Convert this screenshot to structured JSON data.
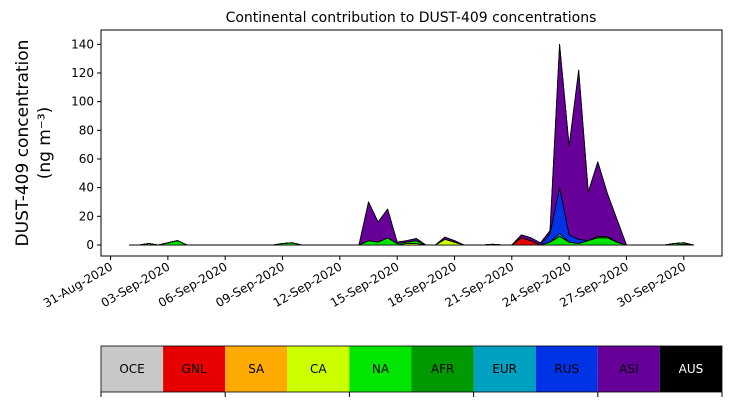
{
  "chart_data": {
    "type": "stacked_area",
    "title": "Continental contribution to DUST-409 concentrations",
    "ylabel": [
      "DUST-409 concentration",
      "(ng m⁻³)"
    ],
    "x": [
      "2020-09-01T00:00",
      "2020-09-01T12:00",
      "2020-09-02T00:00",
      "2020-09-02T12:00",
      "2020-09-03T00:00",
      "2020-09-03T12:00",
      "2020-09-04T00:00",
      "2020-09-04T12:00",
      "2020-09-05T00:00",
      "2020-09-05T12:00",
      "2020-09-06T00:00",
      "2020-09-06T12:00",
      "2020-09-07T00:00",
      "2020-09-07T12:00",
      "2020-09-08T00:00",
      "2020-09-08T12:00",
      "2020-09-09T00:00",
      "2020-09-09T12:00",
      "2020-09-10T00:00",
      "2020-09-10T12:00",
      "2020-09-11T00:00",
      "2020-09-11T12:00",
      "2020-09-12T00:00",
      "2020-09-12T12:00",
      "2020-09-13T00:00",
      "2020-09-13T12:00",
      "2020-09-14T00:00",
      "2020-09-14T12:00",
      "2020-09-15T00:00",
      "2020-09-15T12:00",
      "2020-09-16T00:00",
      "2020-09-16T12:00",
      "2020-09-17T00:00",
      "2020-09-17T12:00",
      "2020-09-18T00:00",
      "2020-09-18T12:00",
      "2020-09-19T00:00",
      "2020-09-19T12:00",
      "2020-09-20T00:00",
      "2020-09-20T12:00",
      "2020-09-21T00:00",
      "2020-09-21T12:00",
      "2020-09-22T00:00",
      "2020-09-22T12:00",
      "2020-09-23T00:00",
      "2020-09-23T12:00",
      "2020-09-24T00:00",
      "2020-09-24T12:00",
      "2020-09-25T00:00",
      "2020-09-25T12:00",
      "2020-09-26T00:00",
      "2020-09-26T12:00",
      "2020-09-27T00:00",
      "2020-09-27T12:00",
      "2020-09-28T00:00",
      "2020-09-28T12:00",
      "2020-09-29T00:00",
      "2020-09-29T12:00",
      "2020-09-30T00:00",
      "2020-09-30T12:00"
    ],
    "series": [
      {
        "name": "OCE",
        "color": "#c8c8c8",
        "values": [
          0,
          0,
          0,
          0,
          0,
          0,
          0,
          0,
          0,
          0,
          0,
          0,
          0,
          0,
          0,
          0,
          0,
          0,
          0,
          0,
          0,
          0,
          0,
          0,
          0,
          0,
          0,
          0,
          0,
          0,
          0,
          0,
          0,
          0,
          0,
          0,
          0,
          0,
          0,
          0,
          0,
          0,
          0,
          0,
          0,
          0,
          0,
          0,
          0,
          0,
          0,
          0,
          0,
          0,
          0,
          0,
          0,
          0,
          0,
          0
        ]
      },
      {
        "name": "GNL",
        "color": "#e60000",
        "values": [
          0,
          0,
          0,
          0,
          0,
          0,
          0,
          0,
          0,
          0,
          0,
          0,
          0,
          0,
          0,
          0,
          0,
          0,
          0,
          0,
          0,
          0,
          0,
          0,
          0,
          0,
          0,
          0,
          0,
          0,
          0,
          0,
          0,
          0,
          0,
          0,
          0,
          0,
          0,
          0,
          0,
          5,
          3,
          0,
          0,
          0,
          0,
          0,
          0,
          0,
          0,
          0,
          0,
          0,
          0,
          0,
          0,
          0,
          0,
          0
        ]
      },
      {
        "name": "SA",
        "color": "#ffaa00",
        "values": [
          0,
          0,
          0,
          0,
          0,
          0,
          0,
          0,
          0,
          0,
          0,
          0,
          0,
          0,
          0,
          0,
          0,
          0,
          0,
          0,
          0,
          0,
          0,
          0,
          0,
          0,
          0,
          0,
          0,
          0,
          0,
          0,
          0,
          0,
          0,
          0,
          0,
          0,
          0,
          0,
          0,
          0,
          0,
          0,
          0,
          0,
          0,
          0,
          0,
          0,
          0,
          0,
          0,
          0,
          0,
          0,
          0,
          0,
          0,
          0
        ]
      },
      {
        "name": "CA",
        "color": "#ccff00",
        "values": [
          0,
          0,
          0,
          0,
          0,
          0,
          0,
          0,
          0,
          0,
          0,
          0,
          0,
          0,
          0,
          0,
          0,
          0,
          0,
          0,
          0,
          0,
          0,
          0,
          0,
          0,
          0,
          0,
          0,
          1,
          1,
          0,
          0,
          4,
          2,
          0,
          0,
          0,
          0,
          0,
          0,
          0,
          0,
          0,
          0,
          0,
          0,
          0,
          0,
          0,
          0,
          0,
          0,
          0,
          0,
          0,
          0,
          0,
          0.5,
          0
        ]
      },
      {
        "name": "NA",
        "color": "#00e600",
        "values": [
          0,
          0,
          1,
          0,
          1.5,
          3,
          0,
          0,
          0,
          0,
          0,
          0,
          0,
          0,
          0,
          0,
          1,
          1.5,
          0,
          0,
          0,
          0,
          0,
          0,
          0,
          3,
          2,
          5,
          1,
          1,
          2,
          0,
          0,
          0,
          0,
          0,
          0,
          0,
          0.5,
          0,
          0,
          0,
          0,
          0,
          2,
          6,
          2,
          1,
          3,
          5,
          5,
          2,
          0,
          0,
          0,
          0,
          0,
          1,
          1,
          0
        ]
      },
      {
        "name": "AFR",
        "color": "#009900",
        "values": [
          0,
          0,
          0,
          0,
          0,
          0,
          0,
          0,
          0,
          0,
          0,
          0,
          0,
          0,
          0,
          0,
          0,
          0,
          0,
          0,
          0,
          0,
          0,
          0,
          0,
          0,
          0,
          0,
          0,
          0,
          0,
          0,
          0,
          0,
          0,
          0,
          0,
          0,
          0,
          0,
          0,
          0,
          0,
          0,
          0,
          0,
          0,
          0,
          0,
          1,
          1,
          0,
          0,
          0,
          0,
          0,
          0,
          0,
          0,
          0
        ]
      },
      {
        "name": "EUR",
        "color": "#00a0c0",
        "values": [
          0,
          0,
          0,
          0,
          0,
          0,
          0,
          0,
          0,
          0,
          0,
          0,
          0,
          0,
          0,
          0,
          0,
          0,
          0,
          0,
          0,
          0,
          0,
          0,
          0,
          0,
          0,
          0,
          0,
          0,
          0,
          0,
          0,
          0,
          0,
          0,
          0,
          0,
          0,
          0,
          0,
          0,
          0,
          0,
          0,
          2,
          0,
          0,
          0,
          0,
          0,
          0,
          0,
          0,
          0,
          0,
          0,
          0,
          0,
          0
        ]
      },
      {
        "name": "RUS",
        "color": "#0032e6",
        "values": [
          0,
          0,
          0,
          0,
          0,
          0,
          0,
          0,
          0,
          0,
          0,
          0,
          0,
          0,
          0,
          0,
          0,
          0,
          0,
          0,
          0,
          0,
          0,
          0,
          0,
          0,
          0,
          0,
          0,
          0,
          0,
          0,
          0,
          0,
          0,
          0,
          0,
          0,
          0,
          0,
          0,
          0,
          0,
          0,
          6,
          32,
          5,
          3,
          0,
          0,
          0,
          0,
          0,
          0,
          0,
          0,
          0,
          0,
          0,
          0
        ]
      },
      {
        "name": "ASI",
        "color": "#660099",
        "values": [
          0,
          0,
          0,
          0,
          0,
          0,
          0,
          0,
          0,
          0,
          0,
          0,
          0,
          0,
          0,
          0,
          0,
          0,
          0,
          0,
          0,
          0,
          0,
          0,
          0,
          27,
          14,
          20,
          1,
          1,
          1.5,
          0,
          0,
          1.5,
          1,
          0,
          0,
          0,
          0,
          0,
          0,
          2,
          2,
          1.5,
          2,
          100,
          62,
          118,
          34,
          52,
          30,
          16,
          0,
          0,
          0,
          0,
          0,
          0,
          0,
          0
        ]
      },
      {
        "name": "AUS",
        "color": "#000000",
        "values": [
          0,
          0,
          0,
          0,
          0,
          0,
          0,
          0,
          0,
          0,
          0,
          0,
          0,
          0,
          0,
          0,
          0,
          0,
          0,
          0,
          0,
          0,
          0,
          0,
          0,
          0,
          0,
          0,
          0,
          0,
          0,
          0,
          0,
          0,
          0,
          0,
          0,
          0,
          0,
          0,
          0,
          0,
          0,
          0,
          0,
          0,
          0,
          0,
          0,
          0,
          0,
          0,
          0,
          0,
          0,
          0,
          0,
          0,
          0,
          0
        ]
      }
    ],
    "xlim": [
      "2020-08-30T12:00",
      "2020-10-02T00:00"
    ],
    "xticks": [
      {
        "value": "2020-08-31T00:00",
        "label": "31-Aug-2020"
      },
      {
        "value": "2020-09-03T00:00",
        "label": "03-Sep-2020"
      },
      {
        "value": "2020-09-06T00:00",
        "label": "06-Sep-2020"
      },
      {
        "value": "2020-09-09T00:00",
        "label": "09-Sep-2020"
      },
      {
        "value": "2020-09-12T00:00",
        "label": "12-Sep-2020"
      },
      {
        "value": "2020-09-15T00:00",
        "label": "15-Sep-2020"
      },
      {
        "value": "2020-09-18T00:00",
        "label": "18-Sep-2020"
      },
      {
        "value": "2020-09-21T00:00",
        "label": "21-Sep-2020"
      },
      {
        "value": "2020-09-24T00:00",
        "label": "24-Sep-2020"
      },
      {
        "value": "2020-09-27T00:00",
        "label": "27-Sep-2020"
      },
      {
        "value": "2020-09-30T00:00",
        "label": "30-Sep-2020"
      }
    ],
    "ylim": [
      -7.7,
      150
    ],
    "yticks": [
      0,
      20,
      40,
      60,
      80,
      100,
      120,
      140
    ]
  }
}
